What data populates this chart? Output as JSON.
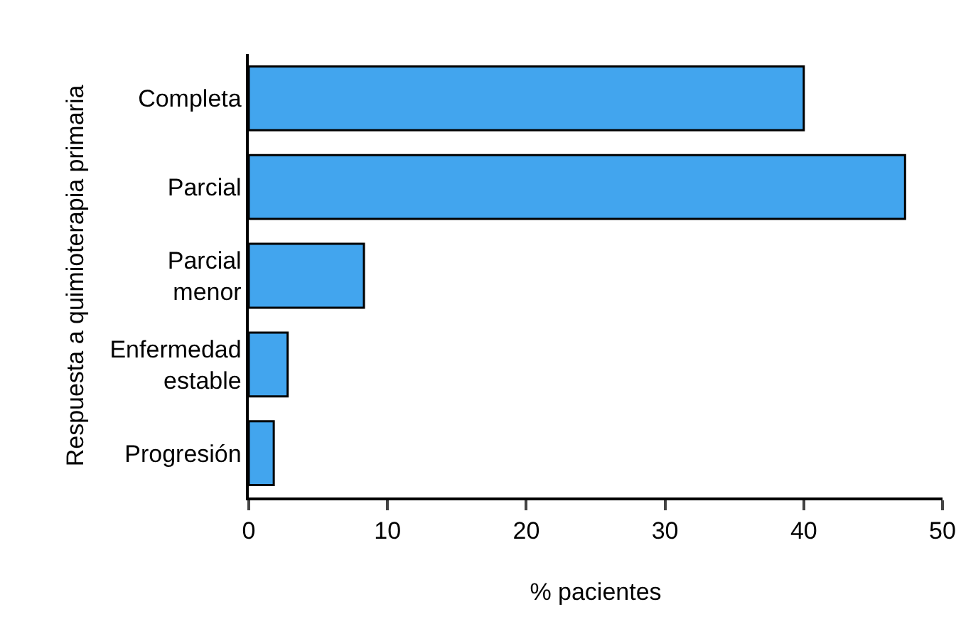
{
  "chart_data": {
    "type": "bar",
    "orientation": "horizontal",
    "xlabel": "% pacientes",
    "ylabel": "Respuesta a quimioterapia primaria",
    "categories": [
      "Completa",
      "Parcial",
      "Parcial\nmenor",
      "Enfermedad\nestable",
      "Progresión"
    ],
    "values": [
      40.0,
      47.3,
      8.3,
      2.8,
      1.8
    ],
    "color": "#42a5ee",
    "xlim": [
      0,
      50
    ],
    "xticks": [
      0,
      10,
      20,
      30,
      40,
      50
    ],
    "grid": false
  }
}
